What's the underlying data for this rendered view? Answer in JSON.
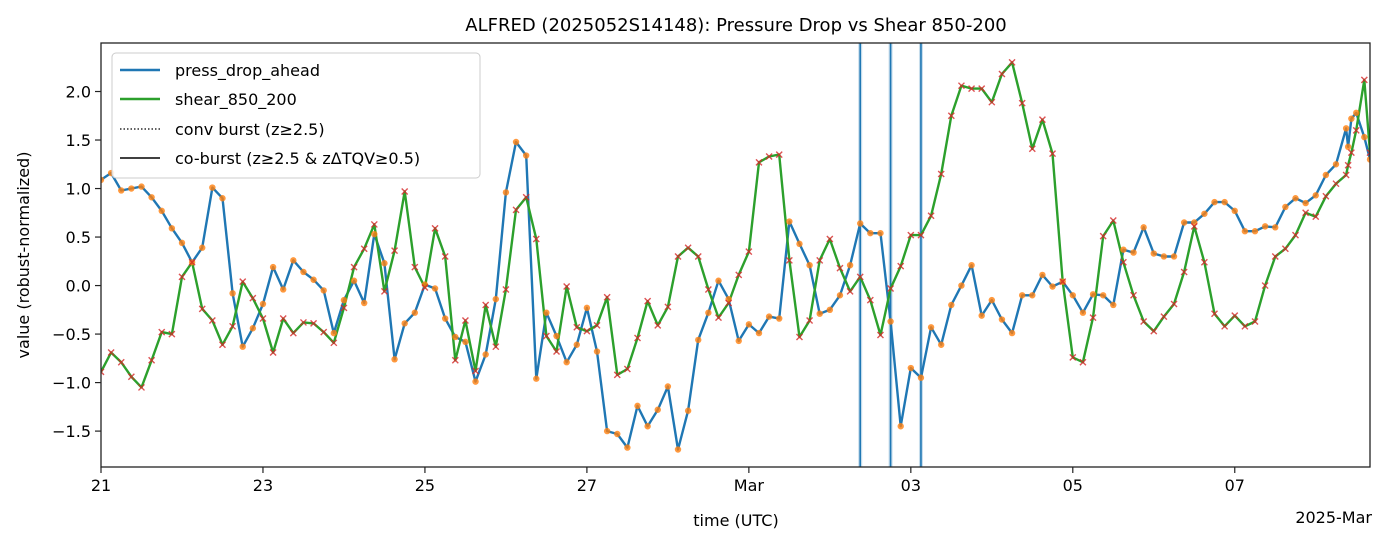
{
  "chart_data": {
    "type": "line",
    "title": "ALFRED (2025052S14148): Pressure Drop vs Shear 850-200",
    "xlabel": "time (UTC)",
    "ylabel": "value (robust-normalized)",
    "x_offset_label": "2025-Mar",
    "x_units": "days since 2025-02-21 00:00 UTC",
    "x_interval_days": 0.125,
    "xlim": [
      0,
      15.67
    ],
    "ylim": [
      -1.87,
      2.5
    ],
    "xticks": [
      {
        "value": 0,
        "label": "21"
      },
      {
        "value": 2,
        "label": "23"
      },
      {
        "value": 4,
        "label": "25"
      },
      {
        "value": 6,
        "label": "27"
      },
      {
        "value": 8,
        "label": "Mar"
      },
      {
        "value": 10,
        "label": "03"
      },
      {
        "value": 12,
        "label": "05"
      },
      {
        "value": 14,
        "label": "07"
      }
    ],
    "yticks": [
      {
        "value": -1.5,
        "label": "−1.5"
      },
      {
        "value": -1.0,
        "label": "−1.0"
      },
      {
        "value": -0.5,
        "label": "−0.5"
      },
      {
        "value": 0.0,
        "label": "0.0"
      },
      {
        "value": 0.5,
        "label": "0.5"
      },
      {
        "value": 1.0,
        "label": "1.0"
      },
      {
        "value": 1.5,
        "label": "1.5"
      },
      {
        "value": 2.0,
        "label": "2.0"
      }
    ],
    "grid": false,
    "legend_position": "top-left",
    "series": [
      {
        "name": "press_drop_ahead",
        "color": "#1f77b4",
        "marker": "circle",
        "marker_color": "#ff7f0e",
        "values": [
          1.09,
          1.16,
          0.98,
          1.0,
          1.02,
          0.91,
          0.77,
          0.59,
          0.44,
          0.24,
          0.39,
          1.01,
          0.9,
          -0.08,
          -0.63,
          -0.44,
          -0.19,
          0.19,
          -0.04,
          0.26,
          0.14,
          0.06,
          -0.05,
          -0.49,
          -0.15,
          0.05,
          -0.18,
          0.53,
          0.23,
          -0.76,
          -0.39,
          -0.28,
          0.01,
          -0.03,
          -0.34,
          -0.53,
          -0.58,
          -0.99,
          -0.71,
          -0.14,
          0.96,
          1.48,
          1.34,
          -0.96,
          -0.28,
          -0.52,
          -0.79,
          -0.61,
          -0.23,
          -0.68,
          -1.5,
          -1.53,
          -1.67,
          -1.24,
          -1.45,
          -1.28,
          -1.04,
          -1.69,
          -1.29,
          -0.56,
          -0.28,
          0.05,
          -0.14,
          -0.57,
          -0.4,
          -0.49,
          -0.32,
          -0.34,
          0.66,
          0.43,
          0.21,
          -0.29,
          -0.25,
          -0.1,
          0.21,
          0.64,
          0.54,
          0.54,
          -0.37,
          -1.45,
          -0.85,
          -0.95,
          -0.43,
          -0.61,
          -0.2,
          0.0,
          0.21,
          -0.31,
          -0.15,
          -0.35,
          -0.49,
          -0.1,
          -0.1,
          0.11,
          -0.01,
          0.04,
          -0.1,
          -0.28,
          -0.09,
          -0.1,
          -0.2,
          0.37,
          0.34,
          0.6,
          0.33,
          0.3,
          0.3,
          0.65,
          0.65,
          0.74,
          0.86,
          0.86,
          0.77,
          0.56,
          0.56,
          0.61,
          0.6,
          0.81,
          0.9,
          0.85,
          0.93,
          1.14,
          1.25,
          1.62
        ],
        "tail_points": [
          [
            15.4,
            1.43
          ],
          [
            15.44,
            1.72
          ],
          [
            15.5,
            1.78
          ],
          [
            15.6,
            1.53
          ],
          [
            15.67,
            1.3
          ]
        ]
      },
      {
        "name": "shear_850_200",
        "color": "#2ca02c",
        "marker": "x",
        "marker_color": "#d62728",
        "values": [
          -0.89,
          -0.69,
          -0.79,
          -0.94,
          -1.05,
          -0.77,
          -0.48,
          -0.5,
          0.09,
          0.24,
          -0.24,
          -0.36,
          -0.61,
          -0.42,
          0.04,
          -0.13,
          -0.34,
          -0.69,
          -0.34,
          -0.49,
          -0.38,
          -0.39,
          -0.48,
          -0.59,
          -0.23,
          0.19,
          0.38,
          0.63,
          -0.06,
          0.36,
          0.97,
          0.19,
          -0.02,
          0.59,
          0.3,
          -0.77,
          -0.36,
          -0.88,
          -0.2,
          -0.63,
          -0.04,
          0.78,
          0.91,
          0.48,
          -0.52,
          -0.68,
          -0.01,
          -0.43,
          -0.47,
          -0.41,
          -0.12,
          -0.92,
          -0.86,
          -0.54,
          -0.16,
          -0.41,
          -0.22,
          0.3,
          0.39,
          0.3,
          -0.04,
          -0.33,
          -0.18,
          0.11,
          0.35,
          1.27,
          1.33,
          1.35,
          0.26,
          -0.53,
          -0.36,
          0.26,
          0.48,
          0.18,
          -0.06,
          0.09,
          -0.15,
          -0.51,
          -0.03,
          0.2,
          0.52,
          0.52,
          0.72,
          1.15,
          1.75,
          2.06,
          2.03,
          2.03,
          1.89,
          2.18,
          2.3,
          1.88,
          1.41,
          1.71,
          1.36,
          0.04,
          -0.74,
          -0.79,
          -0.33,
          0.51,
          0.67,
          0.24,
          -0.1,
          -0.37,
          -0.47,
          -0.32,
          -0.19,
          0.14,
          0.61,
          0.24,
          -0.29,
          -0.42,
          -0.31,
          -0.42,
          -0.37,
          0.0,
          0.3,
          0.38,
          0.52,
          0.75,
          0.71,
          0.92,
          1.05,
          1.14
        ],
        "tail_points": [
          [
            15.4,
            1.24
          ],
          [
            15.44,
            1.37
          ],
          [
            15.5,
            1.6
          ],
          [
            15.6,
            2.12
          ],
          [
            15.67,
            1.37
          ]
        ]
      }
    ],
    "burst_lines": [
      {
        "x": 9.375,
        "type": "co-burst"
      },
      {
        "x": 9.75,
        "type": "co-burst"
      },
      {
        "x": 10.125,
        "type": "co-burst"
      }
    ],
    "legend": [
      {
        "label": "press_drop_ahead",
        "style": "solid",
        "color": "#1f77b4"
      },
      {
        "label": "shear_850_200",
        "style": "solid",
        "color": "#2ca02c"
      },
      {
        "label": "conv burst (z≥2.5)",
        "style": "dotted",
        "color": "#000000"
      },
      {
        "label": "co-burst (z≥2.5 & zΔTQV≥0.5)",
        "style": "solid",
        "color": "#000000"
      }
    ]
  }
}
